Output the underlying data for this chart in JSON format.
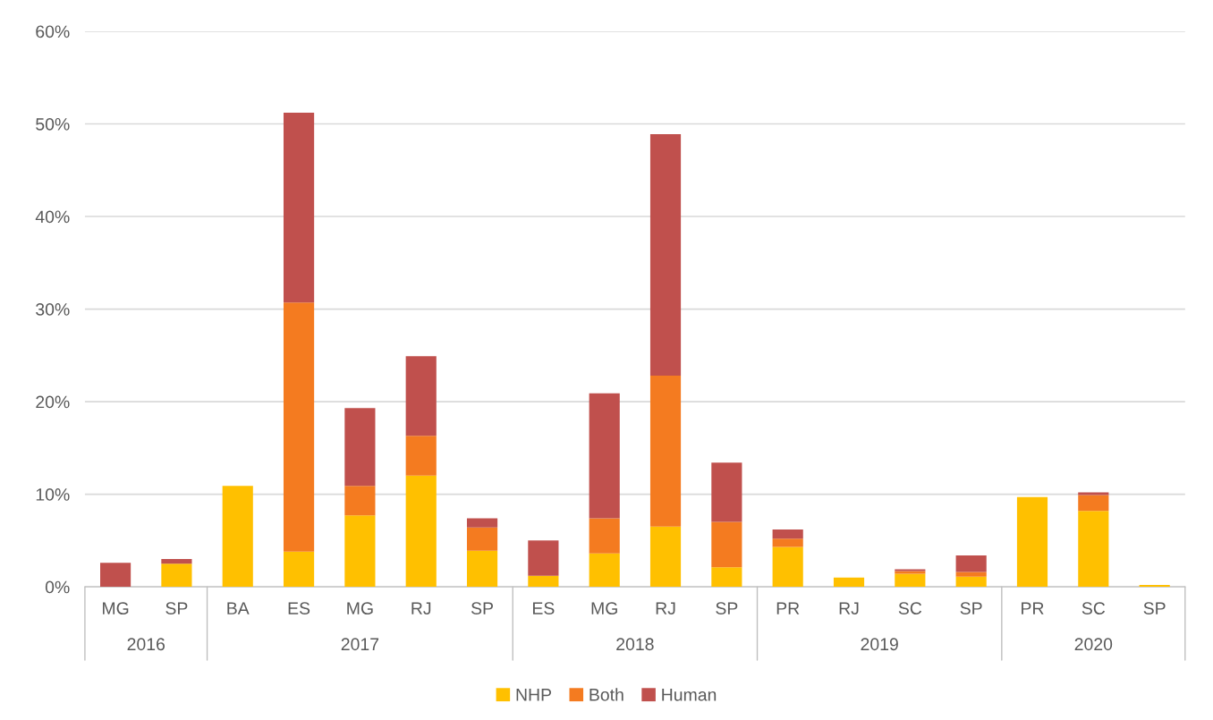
{
  "chart_data": {
    "type": "bar",
    "stacked": true,
    "categories": [
      "MG",
      "SP",
      "BA",
      "ES",
      "MG",
      "RJ",
      "SP",
      "ES",
      "MG",
      "RJ",
      "SP",
      "PR",
      "RJ",
      "SC",
      "SP",
      "PR",
      "SC",
      "SP"
    ],
    "series": [
      {
        "name": "NHP",
        "color": "#ffc000",
        "values": [
          0,
          2.5,
          10.9,
          3.8,
          7.7,
          12.0,
          3.9,
          1.2,
          3.6,
          6.5,
          2.1,
          4.3,
          1.0,
          1.4,
          1.1,
          9.7,
          8.2,
          0.2
        ]
      },
      {
        "name": "Both",
        "color": "#f47b20",
        "values": [
          0,
          0,
          0,
          26.9,
          3.2,
          4.3,
          2.5,
          0,
          3.8,
          16.3,
          4.9,
          0.9,
          0,
          0.3,
          0.5,
          0,
          1.7,
          0
        ]
      },
      {
        "name": "Human",
        "color": "#c0504d",
        "values": [
          2.6,
          0.5,
          0,
          20.5,
          8.4,
          8.6,
          1.0,
          3.8,
          13.5,
          26.1,
          6.4,
          1.0,
          0,
          0.2,
          1.8,
          0,
          0.3,
          0
        ]
      }
    ],
    "annotations": [
      "2016",
      "2017",
      "2018",
      "2019",
      "2020"
    ],
    "ylim": [
      0,
      60
    ],
    "yticks": [
      {
        "value": 0,
        "label": "0%"
      },
      {
        "value": 10,
        "label": "10%"
      },
      {
        "value": 20,
        "label": "20%"
      },
      {
        "value": 30,
        "label": "30%"
      },
      {
        "value": 40,
        "label": "40%"
      },
      {
        "value": 50,
        "label": "50%"
      },
      {
        "value": 60,
        "label": "60%"
      }
    ],
    "grid": "y",
    "legend": "bottom"
  }
}
